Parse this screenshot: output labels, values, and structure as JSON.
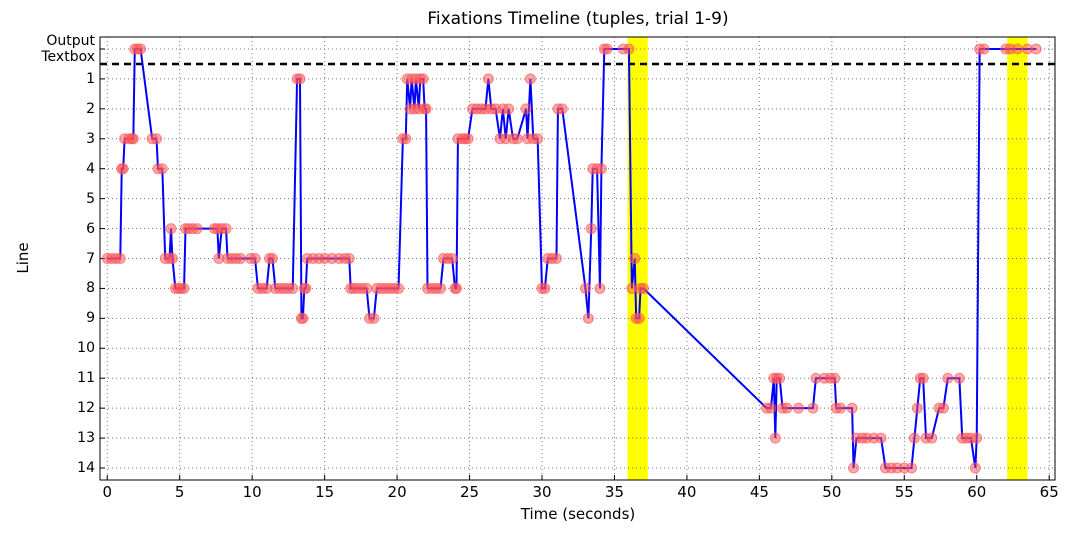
{
  "chart_data": {
    "type": "line",
    "title": "Fixations Timeline (tuples, trial 1-9)",
    "x_label": "Time (seconds)",
    "y_label": "Line",
    "xlim": [
      -0.5,
      65.4
    ],
    "xticks": [
      0,
      5,
      10,
      15,
      20,
      25,
      30,
      35,
      40,
      45,
      50,
      55,
      60,
      65
    ],
    "ylim": [
      -0.4,
      14.4
    ],
    "y_inverted": true,
    "yticks": [
      {
        "value": 0,
        "label": "Output Textbox"
      },
      1,
      2,
      3,
      4,
      5,
      6,
      7,
      8,
      9,
      10,
      11,
      12,
      13,
      14
    ],
    "grid": true,
    "separator": 0.5,
    "highlights": [
      [
        35.9,
        37.3
      ],
      [
        62.1,
        63.5
      ]
    ],
    "highlight_color": "#ffff00",
    "series": [
      {
        "color": "#0000ff",
        "marker_color": "#ff5050",
        "x": [
          0.0,
          0.3,
          0.6,
          0.9,
          1.0,
          1.1,
          1.2,
          1.5,
          1.7,
          1.8,
          1.9,
          2.1,
          2.3,
          3.1,
          3.4,
          3.5,
          3.8,
          4.0,
          4.3,
          4.4,
          4.5,
          4.7,
          4.9,
          5.1,
          5.3,
          5.4,
          5.6,
          5.9,
          6.2,
          7.4,
          7.6,
          7.7,
          7.9,
          8.2,
          8.3,
          8.6,
          8.9,
          9.2,
          9.9,
          10.2,
          10.4,
          10.7,
          11.0,
          11.2,
          11.4,
          11.6,
          11.9,
          12.2,
          12.5,
          12.8,
          13.1,
          13.3,
          13.4,
          13.5,
          13.6,
          13.7,
          13.8,
          14.2,
          14.6,
          15.0,
          15.5,
          16.0,
          16.4,
          16.7,
          16.8,
          17.0,
          17.3,
          17.6,
          17.9,
          18.1,
          18.4,
          18.6,
          18.9,
          19.2,
          19.5,
          19.8,
          20.1,
          20.4,
          20.6,
          20.7,
          20.9,
          21.0,
          21.2,
          21.3,
          21.5,
          21.6,
          21.8,
          21.9,
          22.0,
          22.1,
          22.4,
          22.7,
          23.0,
          23.2,
          23.5,
          23.8,
          24.0,
          24.1,
          24.2,
          24.5,
          24.7,
          24.9,
          25.2,
          25.5,
          25.8,
          26.1,
          26.3,
          26.5,
          26.8,
          27.1,
          27.3,
          27.5,
          27.7,
          28.0,
          28.3,
          28.9,
          29.0,
          29.2,
          29.4,
          29.7,
          30.0,
          30.2,
          30.4,
          30.7,
          31.0,
          31.1,
          31.4,
          33.0,
          33.2,
          33.4,
          33.5,
          33.8,
          34.0,
          34.1,
          34.3,
          34.5,
          35.6,
          36.0,
          36.2,
          36.4,
          36.5,
          36.7,
          36.8,
          37.0,
          45.5,
          45.8,
          46.0,
          46.1,
          46.2,
          46.4,
          46.6,
          46.9,
          47.7,
          48.7,
          48.9,
          49.5,
          49.9,
          50.2,
          50.3,
          50.6,
          51.4,
          51.5,
          51.7,
          52.1,
          52.4,
          52.9,
          53.4,
          53.7,
          54.1,
          54.5,
          55.0,
          55.5,
          55.7,
          55.9,
          56.1,
          56.3,
          56.5,
          56.9,
          57.4,
          57.7,
          58.0,
          58.8,
          59.0,
          59.3,
          59.6,
          59.9,
          60.0,
          60.2,
          60.5,
          62.0,
          62.3,
          62.8,
          63.5,
          64.1
        ],
        "values": [
          7,
          7,
          7,
          7,
          4,
          4,
          3,
          3,
          3,
          3,
          0,
          0,
          0,
          3,
          3,
          4,
          4,
          7,
          7,
          6,
          7,
          8,
          8,
          8,
          8,
          6,
          6,
          6,
          6,
          6,
          6,
          7,
          6,
          6,
          7,
          7,
          7,
          7,
          7,
          7,
          8,
          8,
          8,
          7,
          7,
          8,
          8,
          8,
          8,
          8,
          1,
          1,
          9,
          9,
          8,
          8,
          7,
          7,
          7,
          7,
          7,
          7,
          7,
          7,
          8,
          8,
          8,
          8,
          8,
          9,
          9,
          8,
          8,
          8,
          8,
          8,
          8,
          3,
          3,
          1,
          2,
          1,
          2,
          1,
          2,
          1,
          1,
          2,
          2,
          8,
          8,
          8,
          8,
          7,
          7,
          7,
          8,
          8,
          3,
          3,
          3,
          3,
          2,
          2,
          2,
          2,
          1,
          2,
          2,
          3,
          2,
          3,
          2,
          3,
          3,
          2,
          3,
          1,
          3,
          3,
          8,
          8,
          7,
          7,
          7,
          2,
          2,
          8,
          9,
          6,
          4,
          4,
          8,
          4,
          0,
          0,
          0,
          0,
          8,
          7,
          9,
          9,
          8,
          8,
          12,
          12,
          11,
          13,
          11,
          11,
          12,
          12,
          12,
          12,
          11,
          11,
          11,
          11,
          12,
          12,
          12,
          14,
          13,
          13,
          13,
          13,
          13,
          14,
          14,
          14,
          14,
          14,
          13,
          12,
          11,
          11,
          13,
          13,
          12,
          12,
          11,
          11,
          13,
          13,
          13,
          14,
          13,
          0,
          0,
          0,
          0,
          0,
          0,
          0
        ]
      }
    ]
  }
}
